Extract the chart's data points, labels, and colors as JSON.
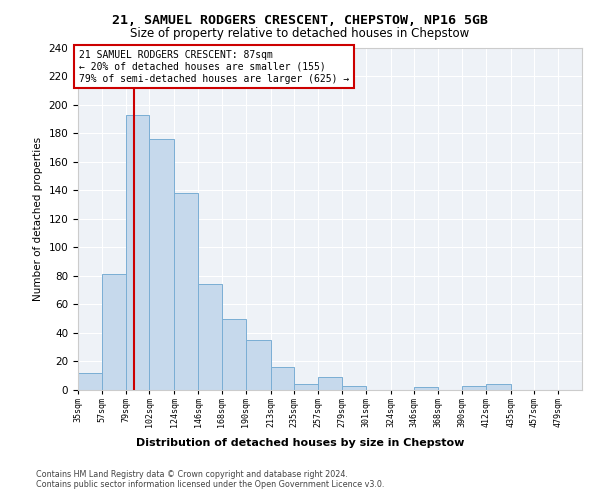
{
  "title1": "21, SAMUEL RODGERS CRESCENT, CHEPSTOW, NP16 5GB",
  "title2": "Size of property relative to detached houses in Chepstow",
  "xlabel": "Distribution of detached houses by size in Chepstow",
  "ylabel": "Number of detached properties",
  "bin_edges": [
    35,
    57,
    79,
    101,
    124,
    146,
    168,
    190,
    213,
    235,
    257,
    279,
    301,
    324,
    346,
    368,
    390,
    412,
    435,
    457,
    479,
    501
  ],
  "bar_heights": [
    12,
    81,
    193,
    176,
    138,
    74,
    50,
    35,
    16,
    4,
    9,
    3,
    0,
    0,
    2,
    0,
    3,
    4,
    0,
    0,
    0
  ],
  "tick_labels": [
    "35sqm",
    "57sqm",
    "79sqm",
    "102sqm",
    "124sqm",
    "146sqm",
    "168sqm",
    "190sqm",
    "213sqm",
    "235sqm",
    "257sqm",
    "279sqm",
    "301sqm",
    "324sqm",
    "346sqm",
    "368sqm",
    "390sqm",
    "412sqm",
    "435sqm",
    "457sqm",
    "479sqm"
  ],
  "bar_color": "#c6d9ec",
  "bar_edge_color": "#7aaed4",
  "vline_x": 87,
  "vline_color": "#cc0000",
  "annotation_line1": "21 SAMUEL RODGERS CRESCENT: 87sqm",
  "annotation_line2": "← 20% of detached houses are smaller (155)",
  "annotation_line3": "79% of semi-detached houses are larger (625) →",
  "annotation_box_color": "white",
  "annotation_box_edge": "#cc0000",
  "ylim": [
    0,
    240
  ],
  "yticks": [
    0,
    20,
    40,
    60,
    80,
    100,
    120,
    140,
    160,
    180,
    200,
    220,
    240
  ],
  "footer1": "Contains HM Land Registry data © Crown copyright and database right 2024.",
  "footer2": "Contains public sector information licensed under the Open Government Licence v3.0.",
  "bg_color": "#eef2f7"
}
